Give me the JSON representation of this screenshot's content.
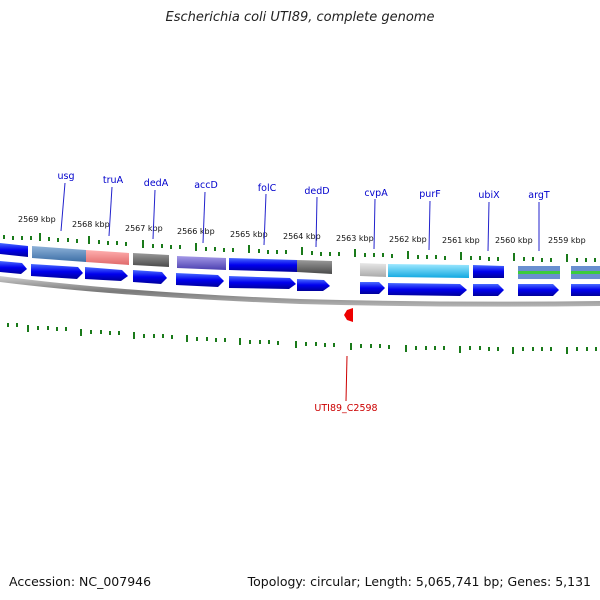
{
  "title": "Escherichia coli UTI89, complete genome",
  "footer": {
    "accession": "Accession: NC_007946",
    "summary": "Topology: circular; Length: 5,065,741 bp; Genes: 5,131"
  },
  "ruler_labels": [
    "2569 kbp",
    "2568 kbp",
    "2567 kbp",
    "2566 kbp",
    "2565 kbp",
    "2564 kbp",
    "2563 kbp",
    "2562 kbp",
    "2561 kbp",
    "2560 kbp",
    "2559 kbp"
  ],
  "gene_labels": [
    "usg",
    "truA",
    "dedA",
    "accD",
    "folC",
    "dedD",
    "cvpA",
    "purF",
    "ubiX",
    "argT"
  ],
  "feature_label": "UTI89_C2598",
  "colors": {
    "gene_label": "#0000cc",
    "feature": "#cc0000",
    "tick": "#1a7a1a",
    "cds": "#0000ee"
  }
}
